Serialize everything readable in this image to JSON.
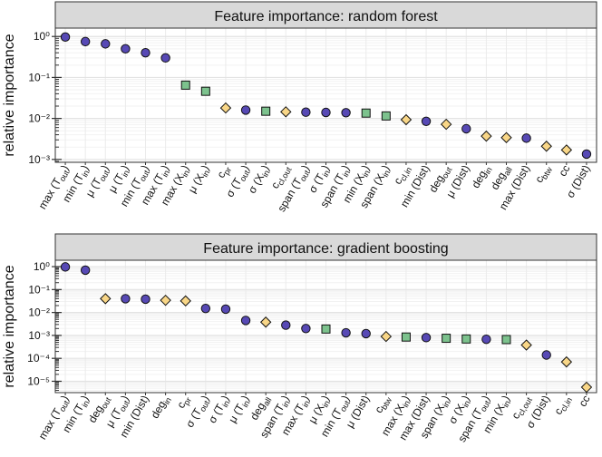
{
  "chart_data": [
    {
      "type": "scatter",
      "title": "Feature importance: random forest",
      "ylabel": "relative importance",
      "yscale": "log",
      "ylim": [
        0.001,
        1.5
      ],
      "y_ticks": [
        {
          "value": 1,
          "label": "10⁰"
        },
        {
          "value": 0.1,
          "label": "10⁻¹"
        },
        {
          "value": 0.01,
          "label": "10⁻²"
        },
        {
          "value": 0.001,
          "label": "10⁻³"
        }
      ],
      "grid": true,
      "marker_types": {
        "node": {
          "shape": "circle",
          "color": "#5749b5"
        },
        "graph": {
          "shape": "diamond",
          "color": "#f8d687"
        },
        "edge": {
          "shape": "square",
          "color": "#7cc28d"
        }
      },
      "categories": [
        {
          "base": "max (T",
          "sub": "out",
          "tail": ")",
          "value": 0.97,
          "kind": "node"
        },
        {
          "base": "min (T",
          "sub": "in",
          "tail": ")",
          "value": 0.75,
          "kind": "node"
        },
        {
          "base": "μ (T",
          "sub": "out",
          "tail": ")",
          "value": 0.66,
          "kind": "node"
        },
        {
          "base": "μ (T",
          "sub": "in",
          "tail": ")",
          "value": 0.5,
          "kind": "node"
        },
        {
          "base": "min (T",
          "sub": "out",
          "tail": ")",
          "value": 0.4,
          "kind": "node"
        },
        {
          "base": "max (T",
          "sub": "in",
          "tail": ")",
          "value": 0.3,
          "kind": "node"
        },
        {
          "base": "max (X",
          "sub": "in",
          "tail": ")",
          "value": 0.065,
          "kind": "edge"
        },
        {
          "base": "μ (X",
          "sub": "in",
          "tail": ")",
          "value": 0.046,
          "kind": "edge"
        },
        {
          "base": "c",
          "sub": "pr",
          "tail": "",
          "value": 0.018,
          "kind": "graph"
        },
        {
          "base": "σ (T",
          "sub": "out",
          "tail": ")",
          "value": 0.016,
          "kind": "node"
        },
        {
          "base": "σ (X",
          "sub": "in",
          "tail": ")",
          "value": 0.015,
          "kind": "edge"
        },
        {
          "base": "c",
          "sub": "cl,out",
          "tail": "",
          "value": 0.0145,
          "kind": "graph"
        },
        {
          "base": "span (T",
          "sub": "out",
          "tail": ")",
          "value": 0.0142,
          "kind": "node"
        },
        {
          "base": "σ (T",
          "sub": "in",
          "tail": ")",
          "value": 0.014,
          "kind": "node"
        },
        {
          "base": "span (T",
          "sub": "in",
          "tail": ")",
          "value": 0.0138,
          "kind": "node"
        },
        {
          "base": "min (X",
          "sub": "in",
          "tail": ")",
          "value": 0.0135,
          "kind": "edge"
        },
        {
          "base": "span (X",
          "sub": "in",
          "tail": ")",
          "value": 0.0115,
          "kind": "edge"
        },
        {
          "base": "c",
          "sub": "cl,in",
          "tail": "",
          "value": 0.0093,
          "kind": "graph"
        },
        {
          "base": "min (Dist)",
          "sub": "",
          "tail": "",
          "value": 0.0085,
          "kind": "node"
        },
        {
          "base": "deg",
          "sub": "out",
          "tail": "",
          "value": 0.0072,
          "kind": "graph"
        },
        {
          "base": "μ (Dist)",
          "sub": "",
          "tail": "",
          "value": 0.0056,
          "kind": "node"
        },
        {
          "base": "deg",
          "sub": "in",
          "tail": "",
          "value": 0.0037,
          "kind": "graph"
        },
        {
          "base": "deg",
          "sub": "all",
          "tail": "",
          "value": 0.0034,
          "kind": "graph"
        },
        {
          "base": "max (Dist)",
          "sub": "",
          "tail": "",
          "value": 0.0033,
          "kind": "node"
        },
        {
          "base": "c",
          "sub": "btw",
          "tail": "",
          "value": 0.0021,
          "kind": "graph"
        },
        {
          "base": "cc",
          "sub": "",
          "tail": "",
          "value": 0.0017,
          "kind": "graph"
        },
        {
          "base": "σ (Dist)",
          "sub": "",
          "tail": "",
          "value": 0.00135,
          "kind": "node"
        }
      ]
    },
    {
      "type": "scatter",
      "title": "Feature importance: gradient boosting",
      "ylabel": "relative importance",
      "yscale": "log",
      "ylim": [
        3e-06,
        2
      ],
      "y_ticks": [
        {
          "value": 1,
          "label": "10⁰"
        },
        {
          "value": 0.1,
          "label": "10⁻¹"
        },
        {
          "value": 0.01,
          "label": "10⁻²"
        },
        {
          "value": 0.001,
          "label": "10⁻³"
        },
        {
          "value": 0.0001,
          "label": "10⁻⁴"
        },
        {
          "value": 1e-05,
          "label": "10⁻⁵"
        }
      ],
      "grid": true,
      "categories": [
        {
          "base": "max (T",
          "sub": "out",
          "tail": ")",
          "value": 0.97,
          "kind": "node"
        },
        {
          "base": "min (T",
          "sub": "in",
          "tail": ")",
          "value": 0.7,
          "kind": "node"
        },
        {
          "base": "deg",
          "sub": "out",
          "tail": "",
          "value": 0.04,
          "kind": "graph"
        },
        {
          "base": "μ (T",
          "sub": "out",
          "tail": ")",
          "value": 0.04,
          "kind": "node"
        },
        {
          "base": "min (Dist)",
          "sub": "",
          "tail": "",
          "value": 0.038,
          "kind": "node"
        },
        {
          "base": "deg",
          "sub": "in",
          "tail": "",
          "value": 0.034,
          "kind": "graph"
        },
        {
          "base": "c",
          "sub": "pr",
          "tail": "",
          "value": 0.032,
          "kind": "graph"
        },
        {
          "base": "σ (T",
          "sub": "out",
          "tail": ")",
          "value": 0.015,
          "kind": "node"
        },
        {
          "base": "σ (T",
          "sub": "in",
          "tail": ")",
          "value": 0.014,
          "kind": "node"
        },
        {
          "base": "μ (T",
          "sub": "in",
          "tail": ")",
          "value": 0.0045,
          "kind": "node"
        },
        {
          "base": "deg",
          "sub": "all",
          "tail": "",
          "value": 0.0038,
          "kind": "graph"
        },
        {
          "base": "span (T",
          "sub": "in",
          "tail": ")",
          "value": 0.0028,
          "kind": "node"
        },
        {
          "base": "max (T",
          "sub": "in",
          "tail": ")",
          "value": 0.002,
          "kind": "node"
        },
        {
          "base": "μ (X",
          "sub": "in",
          "tail": ")",
          "value": 0.0019,
          "kind": "edge"
        },
        {
          "base": "min (T",
          "sub": "out",
          "tail": ")",
          "value": 0.0013,
          "kind": "node"
        },
        {
          "base": "μ (Dist)",
          "sub": "",
          "tail": "",
          "value": 0.0012,
          "kind": "node"
        },
        {
          "base": "c",
          "sub": "btw",
          "tail": "",
          "value": 0.0009,
          "kind": "graph"
        },
        {
          "base": "max (X",
          "sub": "in",
          "tail": ")",
          "value": 0.00085,
          "kind": "edge"
        },
        {
          "base": "max (Dist)",
          "sub": "",
          "tail": "",
          "value": 0.0008,
          "kind": "node"
        },
        {
          "base": "span (X",
          "sub": "in",
          "tail": ")",
          "value": 0.00075,
          "kind": "edge"
        },
        {
          "base": "σ (X",
          "sub": "in",
          "tail": ")",
          "value": 0.0007,
          "kind": "edge"
        },
        {
          "base": "span (T",
          "sub": "out",
          "tail": ")",
          "value": 0.00068,
          "kind": "node"
        },
        {
          "base": "min (X",
          "sub": "in",
          "tail": ")",
          "value": 0.00066,
          "kind": "edge"
        },
        {
          "base": "c",
          "sub": "cl,out",
          "tail": "",
          "value": 0.00038,
          "kind": "graph"
        },
        {
          "base": "σ (Dist)",
          "sub": "",
          "tail": "",
          "value": 0.00014,
          "kind": "node"
        },
        {
          "base": "c",
          "sub": "cl,in",
          "tail": "",
          "value": 7e-05,
          "kind": "graph"
        },
        {
          "base": "cc",
          "sub": "",
          "tail": "",
          "value": 5.5e-06,
          "kind": "graph"
        }
      ]
    }
  ]
}
